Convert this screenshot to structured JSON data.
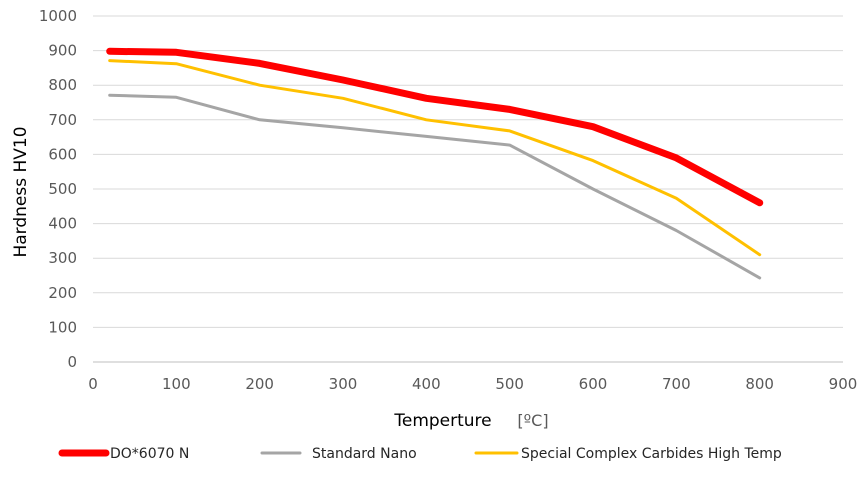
{
  "chart_data": {
    "type": "line",
    "title": "",
    "xlabel": "Temperture",
    "xunit": "[ºC]",
    "ylabel": "Hardness  HV10",
    "xlim": [
      0,
      900
    ],
    "ylim": [
      0,
      1000
    ],
    "xticks": [
      "0",
      "100",
      "200",
      "300",
      "400",
      "500",
      "600",
      "700",
      "800",
      "900"
    ],
    "yticks": [
      "0",
      "100",
      "200",
      "300",
      "400",
      "500",
      "600",
      "700",
      "800",
      "900",
      "1000"
    ],
    "grid": "horizontal",
    "legend_position": "bottom",
    "series": [
      {
        "name": "DO*6070 N",
        "color": "#ff0000",
        "x": [
          20,
          100,
          200,
          300,
          400,
          500,
          600,
          700,
          800
        ],
        "y": [
          898,
          895,
          863,
          815,
          762,
          730,
          680,
          590,
          460
        ]
      },
      {
        "name": "Standard Nano",
        "color": "#a5a5a5",
        "x": [
          20,
          100,
          200,
          300,
          400,
          500,
          600,
          700,
          800
        ],
        "y": [
          771,
          765,
          700,
          677,
          652,
          627,
          500,
          380,
          243
        ]
      },
      {
        "name": "Special Complex Carbides High Temp",
        "color": "#ffc000",
        "x": [
          20,
          100,
          200,
          300,
          400,
          500,
          600,
          700,
          800
        ],
        "y": [
          871,
          862,
          800,
          762,
          700,
          668,
          582,
          473,
          310
        ]
      }
    ]
  }
}
